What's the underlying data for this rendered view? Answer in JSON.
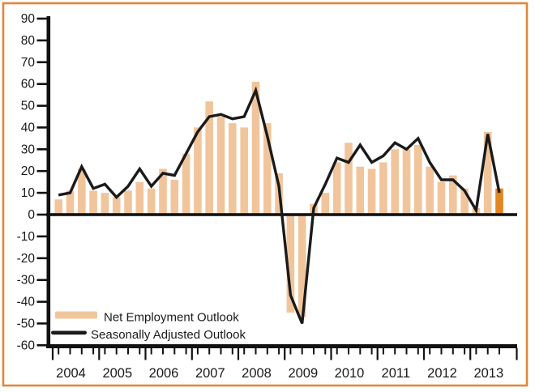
{
  "chart_data": {
    "type": "bar+line",
    "title": "",
    "categories": [
      "2004 Q1",
      "2004 Q2",
      "2004 Q3",
      "2004 Q4",
      "2005 Q1",
      "2005 Q2",
      "2005 Q3",
      "2005 Q4",
      "2006 Q1",
      "2006 Q2",
      "2006 Q3",
      "2006 Q4",
      "2007 Q1",
      "2007 Q2",
      "2007 Q3",
      "2007 Q4",
      "2008 Q1",
      "2008 Q2",
      "2008 Q3",
      "2008 Q4",
      "2009 Q1",
      "2009 Q2",
      "2009 Q3",
      "2009 Q4",
      "2010 Q1",
      "2010 Q2",
      "2010 Q3",
      "2010 Q4",
      "2011 Q1",
      "2011 Q2",
      "2011 Q3",
      "2011 Q4",
      "2012 Q1",
      "2012 Q2",
      "2012 Q3",
      "2012 Q4",
      "2013 Q1",
      "2013 Q2",
      "2013 Q3"
    ],
    "series": [
      {
        "name": "Net Employment Outlook",
        "type": "bar",
        "color": "#F1C59C",
        "highlight_last": true,
        "highlight_color": "#E2861F",
        "values": [
          7,
          11,
          21,
          11,
          10,
          8,
          11,
          15,
          12,
          21,
          16,
          28,
          40,
          52,
          45,
          42,
          40,
          61,
          42,
          19,
          -45,
          -47,
          5,
          10,
          24,
          33,
          22,
          21,
          24,
          30,
          30,
          32,
          22,
          15,
          18,
          12,
          3,
          38,
          12
        ]
      },
      {
        "name": "Seasonally Adjusted Outlook",
        "type": "line",
        "color": "#1A1A1A",
        "values": [
          9,
          10,
          22,
          12,
          14,
          8,
          13,
          21,
          13,
          19,
          18,
          28,
          38,
          45,
          46,
          44,
          45,
          57,
          36,
          13,
          -37,
          -50,
          3,
          14,
          26,
          24,
          32,
          24,
          27,
          33,
          30,
          35,
          24,
          16,
          16,
          11,
          2,
          37,
          10
        ]
      }
    ],
    "x_years": [
      "2004",
      "2005",
      "2006",
      "2007",
      "2008",
      "2009",
      "2010",
      "2011",
      "2012",
      "2013"
    ],
    "yticks": [
      90,
      80,
      70,
      60,
      50,
      40,
      30,
      20,
      10,
      0,
      -10,
      -20,
      -30,
      -40,
      -50,
      -60
    ],
    "ylim": [
      -60,
      90
    ],
    "grid": "off",
    "legend_position": "bottom-left",
    "colors": {
      "bar": "#F1C59C",
      "bar_highlight": "#E2861F",
      "line": "#1A1A1A",
      "axis": "#111111",
      "frame_border": "#E0873B",
      "background": "#FFFFFF"
    }
  }
}
